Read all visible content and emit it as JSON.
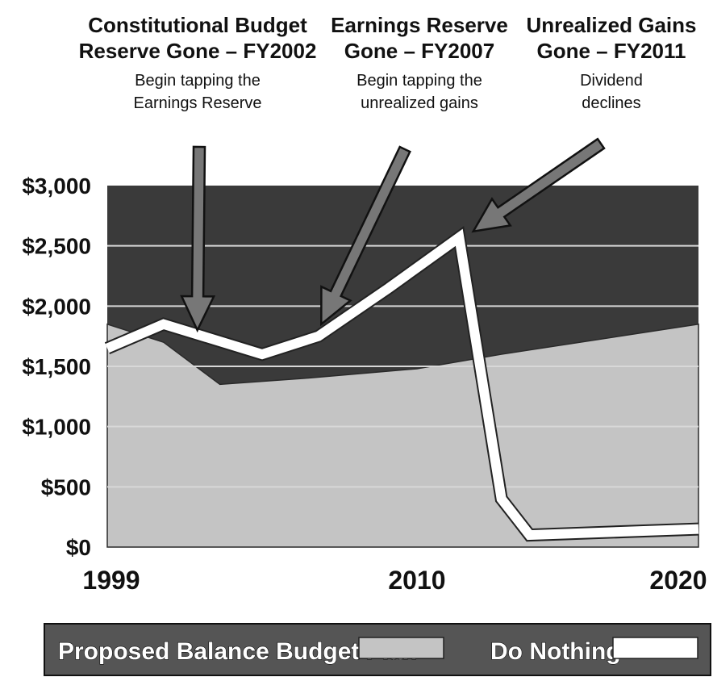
{
  "chart_data": {
    "type": "area",
    "x_min": 1999,
    "x_max": 2020,
    "ylim": [
      0,
      3000
    ],
    "x_ticks": [
      "1999",
      "2010",
      "2020"
    ],
    "y_ticks": [
      {
        "value": 0,
        "label": "$0"
      },
      {
        "value": 500,
        "label": "$500"
      },
      {
        "value": 1000,
        "label": "$1,000"
      },
      {
        "value": 1500,
        "label": "$1,500"
      },
      {
        "value": 2000,
        "label": "$2,000"
      },
      {
        "value": 2500,
        "label": "$2,500"
      },
      {
        "value": 3000,
        "label": "$3,000"
      }
    ],
    "grid": true,
    "legend_position": "bottom",
    "series": [
      {
        "name": "Proposed Balance Budget Plan",
        "style": "area",
        "color": "#c4c4c4",
        "x": [
          1999,
          2001,
          2003,
          2006,
          2010,
          2013,
          2020
        ],
        "y": [
          1850,
          1700,
          1350,
          1400,
          1480,
          1600,
          1850
        ]
      },
      {
        "name": "Do Nothing",
        "style": "line",
        "color": "#ffffff",
        "x": [
          1999,
          2001,
          2004.5,
          2006.5,
          2009,
          2011.5,
          2013,
          2014,
          2020
        ],
        "y": [
          1650,
          1850,
          1600,
          1750,
          2150,
          2570,
          400,
          100,
          150
        ]
      }
    ],
    "annotations": [
      {
        "title_lines": [
          "Constitutional Budget",
          "Reserve Gone – FY2002"
        ],
        "sub_lines": [
          "Begin tapping the",
          "Earnings Reserve"
        ],
        "point": {
          "x": 2002.2,
          "y": 1800
        }
      },
      {
        "title_lines": [
          "Earnings Reserve",
          "Gone – FY2007"
        ],
        "sub_lines": [
          "Begin tapping the",
          "unrealized gains"
        ],
        "point": {
          "x": 2006.6,
          "y": 1850
        }
      },
      {
        "title_lines": [
          "Unrealized Gains",
          "Gone – FY2011"
        ],
        "sub_lines": [
          "Dividend",
          "declines"
        ],
        "point": {
          "x": 2012.0,
          "y": 2620
        }
      }
    ]
  },
  "colors": {
    "plot_background": "#3a3a3a",
    "gridline": "#d8d8d8",
    "area_outline": "#2a2a2a",
    "legend_background": "#555555"
  }
}
